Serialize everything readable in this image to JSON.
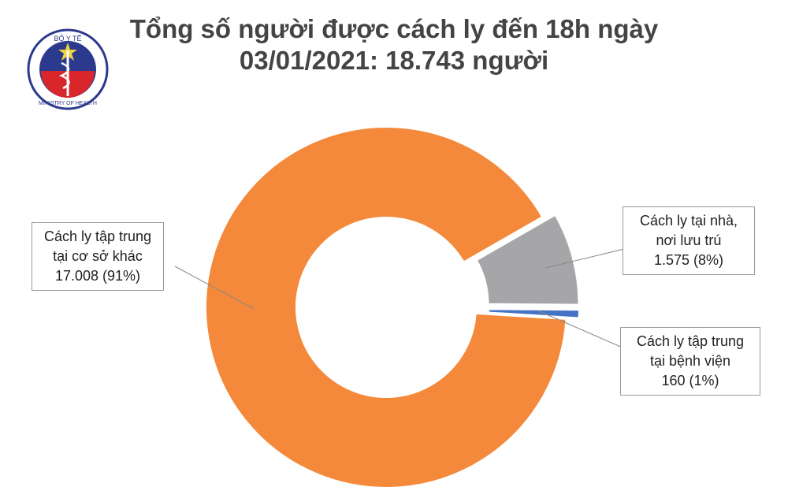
{
  "logo": {
    "top": "BỘ Y TẾ",
    "bottom": "MINISTRY OF HEALTH"
  },
  "chart_data": {
    "type": "pie",
    "donut": true,
    "title": [
      "Tổng số người được cách ly đến 18h ngày",
      "03/01/2021: 18.743 người"
    ],
    "categories": [
      "Cách ly tập trung tại cơ sở khác",
      "Cách ly tại nhà, nơi lưu trú",
      "Cách ly tập trung tại bệnh viện"
    ],
    "values": [
      17008,
      1575,
      160
    ],
    "value_labels": [
      "17.008 (91%)",
      "1.575 (8%)",
      "160 (1%)"
    ],
    "colors": [
      "#f4893b",
      "#a6a6a9",
      "#4473c5"
    ]
  }
}
